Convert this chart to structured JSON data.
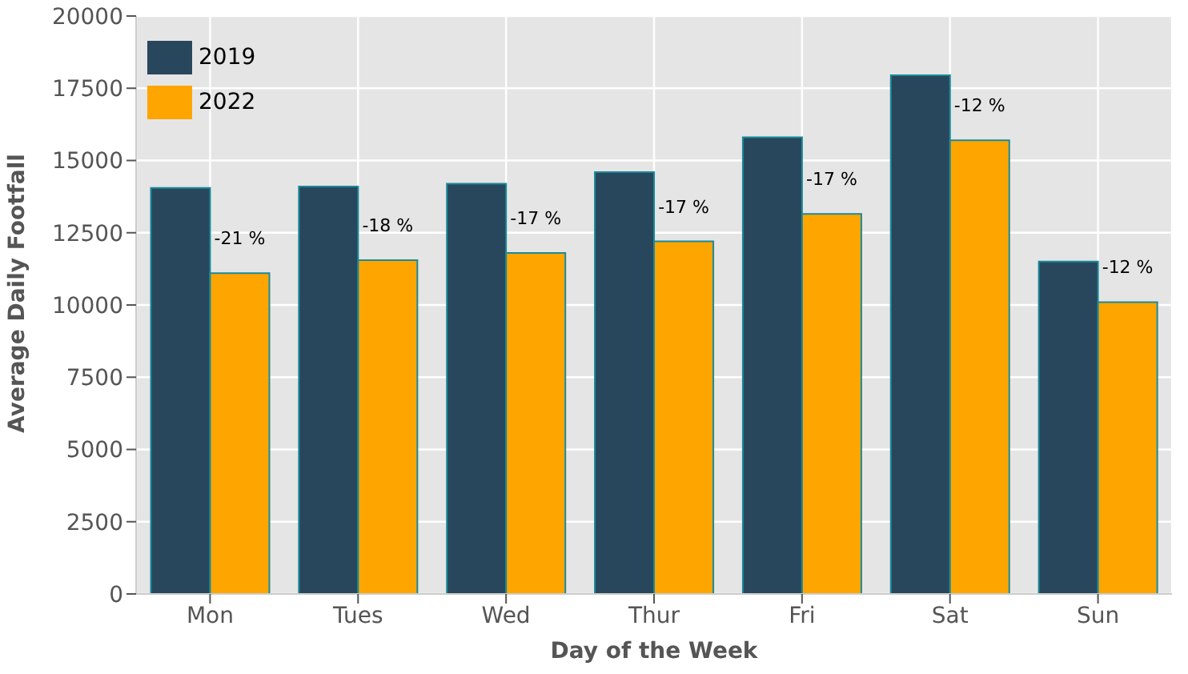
{
  "chart_data": {
    "type": "bar",
    "xlabel": "Day of the Week",
    "ylabel": "Average Daily Footfall",
    "categories": [
      "Mon",
      "Tues",
      "Wed",
      "Thur",
      "Fri",
      "Sat",
      "Sun"
    ],
    "series": [
      {
        "name": "2019",
        "color": "#29475c",
        "values": [
          14050,
          14100,
          14200,
          14600,
          15800,
          17950,
          11500
        ]
      },
      {
        "name": "2022",
        "color": "#ffa500",
        "values": [
          11100,
          11550,
          11800,
          12200,
          13150,
          15700,
          10100
        ]
      }
    ],
    "annotations": [
      {
        "text": "-21 %",
        "x": "Mon",
        "y": 11100
      },
      {
        "text": "-18 %",
        "x": "Tues",
        "y": 11550
      },
      {
        "text": "-17 %",
        "x": "Wed",
        "y": 11800
      },
      {
        "text": "-17 %",
        "x": "Thur",
        "y": 12200
      },
      {
        "text": "-17 %",
        "x": "Fri",
        "y": 13150
      },
      {
        "text": "-12 %",
        "x": "Sat",
        "y": 15700
      },
      {
        "text": "-12 %",
        "x": "Sun",
        "y": 10100
      }
    ],
    "ylim": [
      0,
      20000
    ],
    "yticks": [
      0,
      2500,
      5000,
      7500,
      10000,
      12500,
      15000,
      17500,
      20000
    ],
    "grid": true,
    "legend": "top left"
  }
}
